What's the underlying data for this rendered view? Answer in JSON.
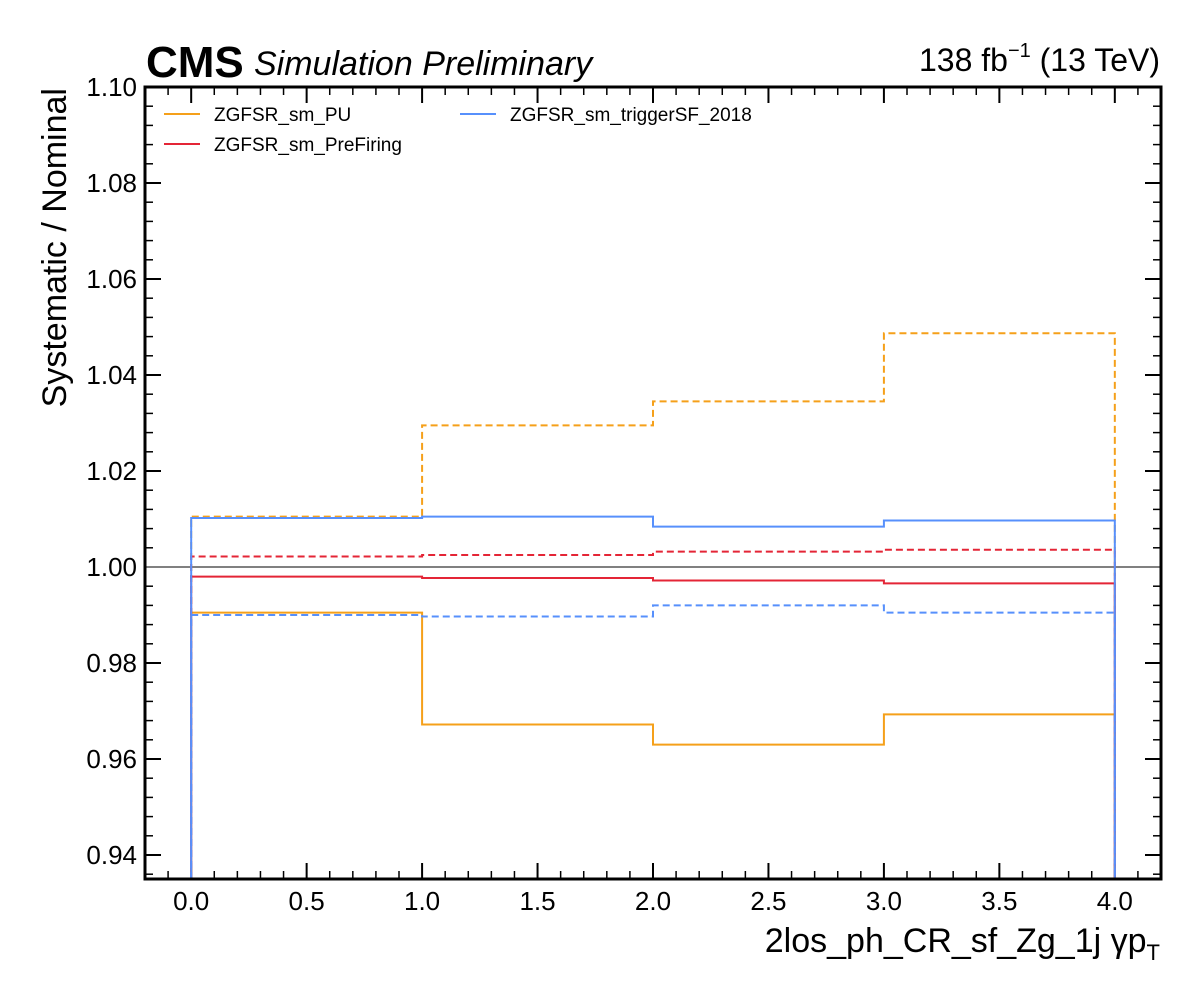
{
  "header": {
    "experiment": "CMS",
    "subtitle": "Simulation Preliminary",
    "lumi_value": "138 fb",
    "lumi_exp": "−1",
    "energy": " (13 TeV)"
  },
  "chart_data": {
    "type": "line",
    "step": true,
    "xlabel": "2los_ph_CR_sf_Zg_1j   γp",
    "xlabel_sub": "T",
    "ylabel": "Systematic / Nominal",
    "xlim": [
      -0.2,
      4.2
    ],
    "ylim": [
      0.935,
      1.1
    ],
    "x_major_ticks": [
      0.0,
      0.5,
      1.0,
      1.5,
      2.0,
      2.5,
      3.0,
      3.5,
      4.0
    ],
    "x_tick_labels": [
      "0.0",
      "0.5",
      "1.0",
      "1.5",
      "2.0",
      "2.5",
      "3.0",
      "3.5",
      "4.0"
    ],
    "y_major_ticks": [
      0.94,
      0.96,
      0.98,
      1.0,
      1.02,
      1.04,
      1.06,
      1.08,
      1.1
    ],
    "y_tick_labels": [
      "0.94",
      "0.96",
      "0.98",
      "1.00",
      "1.02",
      "1.04",
      "1.06",
      "1.08",
      "1.10"
    ],
    "bin_edges": [
      0,
      1,
      2,
      3,
      4
    ],
    "reference_line": 1.0,
    "grid": false,
    "legend_position": "top-left",
    "series": [
      {
        "name": "ZGFSR_sm_PU",
        "variation": "up",
        "color": "#f5a01a",
        "dashed": true,
        "values": [
          1.0105,
          1.0295,
          1.0345,
          1.0487
        ]
      },
      {
        "name": "ZGFSR_sm_PU",
        "variation": "down",
        "color": "#f5a01a",
        "dashed": false,
        "values": [
          0.9905,
          0.9672,
          0.963,
          0.9693
        ]
      },
      {
        "name": "ZGFSR_sm_PreFiring",
        "variation": "up",
        "color": "#e42536",
        "dashed": true,
        "values": [
          1.0022,
          1.0025,
          1.0032,
          1.0036
        ]
      },
      {
        "name": "ZGFSR_sm_PreFiring",
        "variation": "down",
        "color": "#e42536",
        "dashed": false,
        "values": [
          0.998,
          0.9977,
          0.9972,
          0.9966
        ]
      },
      {
        "name": "ZGFSR_sm_triggerSF_2018",
        "variation": "up",
        "color": "#5790fc",
        "dashed": false,
        "values": [
          1.0102,
          1.0105,
          1.0084,
          1.0097
        ]
      },
      {
        "name": "ZGFSR_sm_triggerSF_2018",
        "variation": "down",
        "color": "#5790fc",
        "dashed": true,
        "values": [
          0.99,
          0.9897,
          0.992,
          0.9905
        ]
      }
    ],
    "legend": [
      {
        "label": "ZGFSR_sm_PU",
        "color": "#f5a01a"
      },
      {
        "label": "ZGFSR_sm_PreFiring",
        "color": "#e42536"
      },
      {
        "label": "ZGFSR_sm_triggerSF_2018",
        "color": "#5790fc"
      }
    ]
  }
}
